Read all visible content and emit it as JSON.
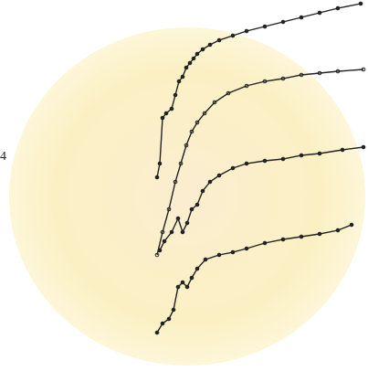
{
  "chart_data": {
    "type": "line",
    "annotation": "4",
    "xlim": [
      170,
      400
    ],
    "ylim": [
      0,
      400
    ],
    "color": "#222222",
    "series": [
      {
        "x": [
          172,
          175,
          178,
          182,
          188,
          192,
          196,
          200,
          204,
          208,
          212,
          216,
          222,
          230,
          240,
          255,
          270,
          290,
          310,
          330,
          350,
          370,
          395
        ],
        "values": [
          206,
          221,
          271,
          276,
          281,
          296,
          311,
          316,
          326,
          331,
          336,
          341,
          346,
          351,
          356,
          361,
          366,
          371,
          376,
          381,
          386,
          391,
          396
        ]
      },
      {
        "x": [
          172,
          178,
          185,
          192,
          198,
          204,
          210,
          216,
          224,
          235,
          250,
          270,
          290,
          310,
          330,
          350,
          370,
          398
        ],
        "values": [
          121,
          146,
          171,
          201,
          221,
          241,
          256,
          266,
          276,
          288,
          298,
          306,
          311,
          314,
          318,
          320,
          322,
          324
        ]
      },
      {
        "x": [
          175,
          180,
          188,
          195,
          200,
          205,
          210,
          216,
          222,
          230,
          240,
          255,
          270,
          290,
          310,
          330,
          350,
          375,
          398
        ],
        "values": [
          126,
          136,
          146,
          161,
          146,
          156,
          171,
          176,
          191,
          201,
          208,
          216,
          221,
          224,
          226,
          230,
          232,
          236,
          239
        ]
      },
      {
        "x": [
          172,
          178,
          185,
          190,
          195,
          200,
          205,
          210,
          216,
          225,
          240,
          255,
          270,
          290,
          310,
          330,
          350,
          370,
          385
        ],
        "values": [
          36,
          46,
          51,
          61,
          86,
          91,
          86,
          96,
          106,
          116,
          121,
          124,
          128,
          134,
          138,
          141,
          144,
          148,
          154
        ]
      }
    ]
  }
}
